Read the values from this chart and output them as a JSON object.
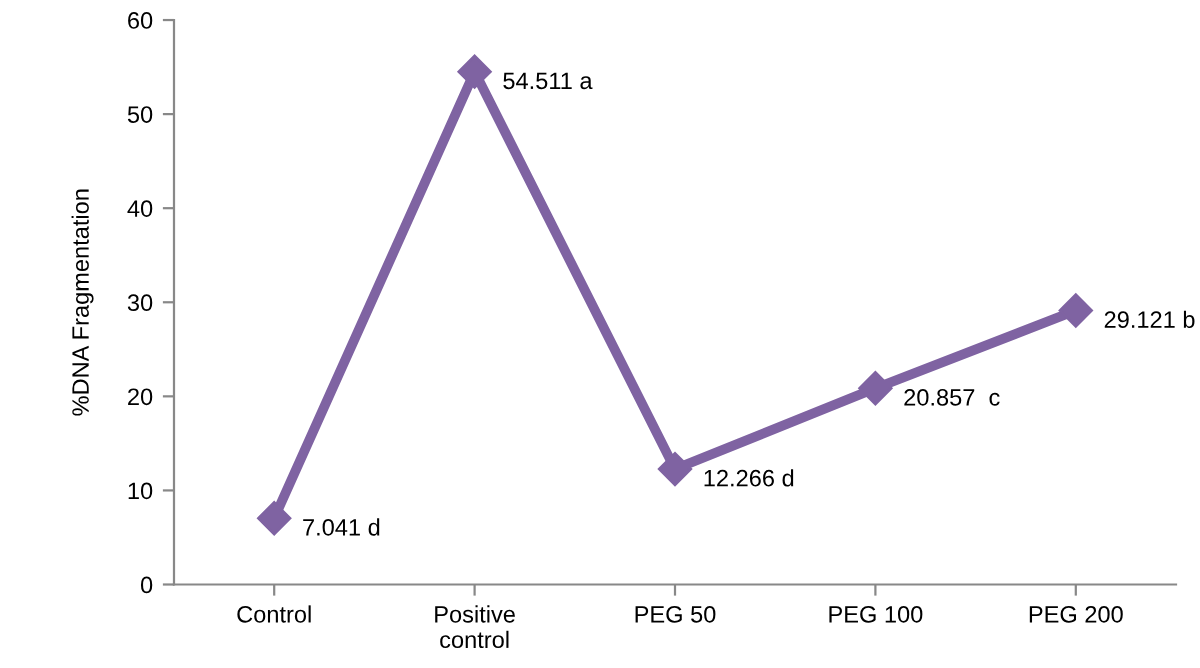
{
  "chart_data": {
    "type": "line",
    "ylabel": "%DNA Fragmentation",
    "categories": [
      "Control",
      "Positive control",
      "PEG 50",
      "PEG 100",
      "PEG 200"
    ],
    "series": [
      {
        "color": "#7f63a2",
        "values": [
          7.041,
          54.511,
          12.266,
          20.857,
          29.121
        ],
        "value_labels": [
          "7.041 d",
          "54.511 a",
          "12.266 d",
          "20.857  c",
          "29.121 b"
        ]
      }
    ],
    "ylim": [
      0,
      60
    ],
    "yticks": [
      0,
      10,
      20,
      30,
      40,
      50,
      60
    ],
    "marker": "diamond",
    "line_style": "solid",
    "grid": false,
    "legend": false
  }
}
